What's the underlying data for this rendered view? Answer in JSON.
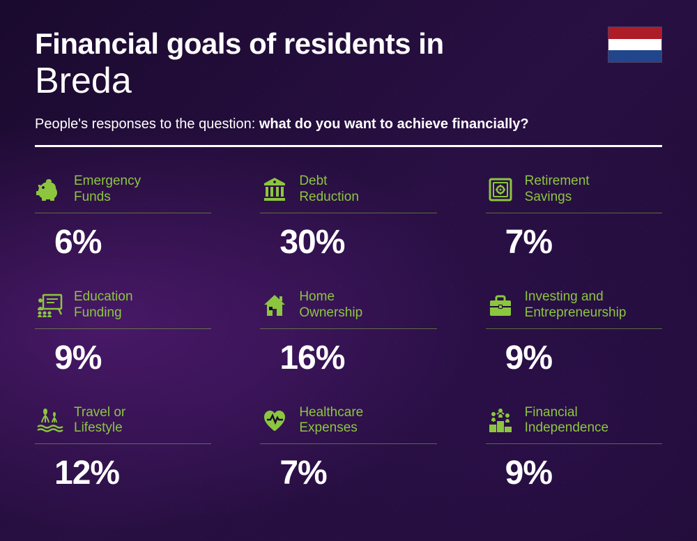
{
  "title_line1": "Financial goals of residents in",
  "title_line2": "Breda",
  "subtitle_prefix": "People's responses to the question: ",
  "subtitle_bold": "what do you want to achieve financially?",
  "flag_colors": [
    "#ae1c28",
    "#ffffff",
    "#21468b"
  ],
  "accent_color": "#8cc63f",
  "text_color": "#ffffff",
  "items": [
    {
      "label": "Emergency\nFunds",
      "value": "6%",
      "icon": "piggy"
    },
    {
      "label": "Debt\nReduction",
      "value": "30%",
      "icon": "bank"
    },
    {
      "label": "Retirement\nSavings",
      "value": "7%",
      "icon": "safe"
    },
    {
      "label": "Education\nFunding",
      "value": "9%",
      "icon": "education"
    },
    {
      "label": "Home\nOwnership",
      "value": "16%",
      "icon": "home"
    },
    {
      "label": "Investing and\nEntrepreneurship",
      "value": "9%",
      "icon": "briefcase"
    },
    {
      "label": "Travel or\nLifestyle",
      "value": "12%",
      "icon": "travel"
    },
    {
      "label": "Healthcare\nExpenses",
      "value": "7%",
      "icon": "health"
    },
    {
      "label": "Financial\nIndependence",
      "value": "9%",
      "icon": "podium"
    }
  ]
}
